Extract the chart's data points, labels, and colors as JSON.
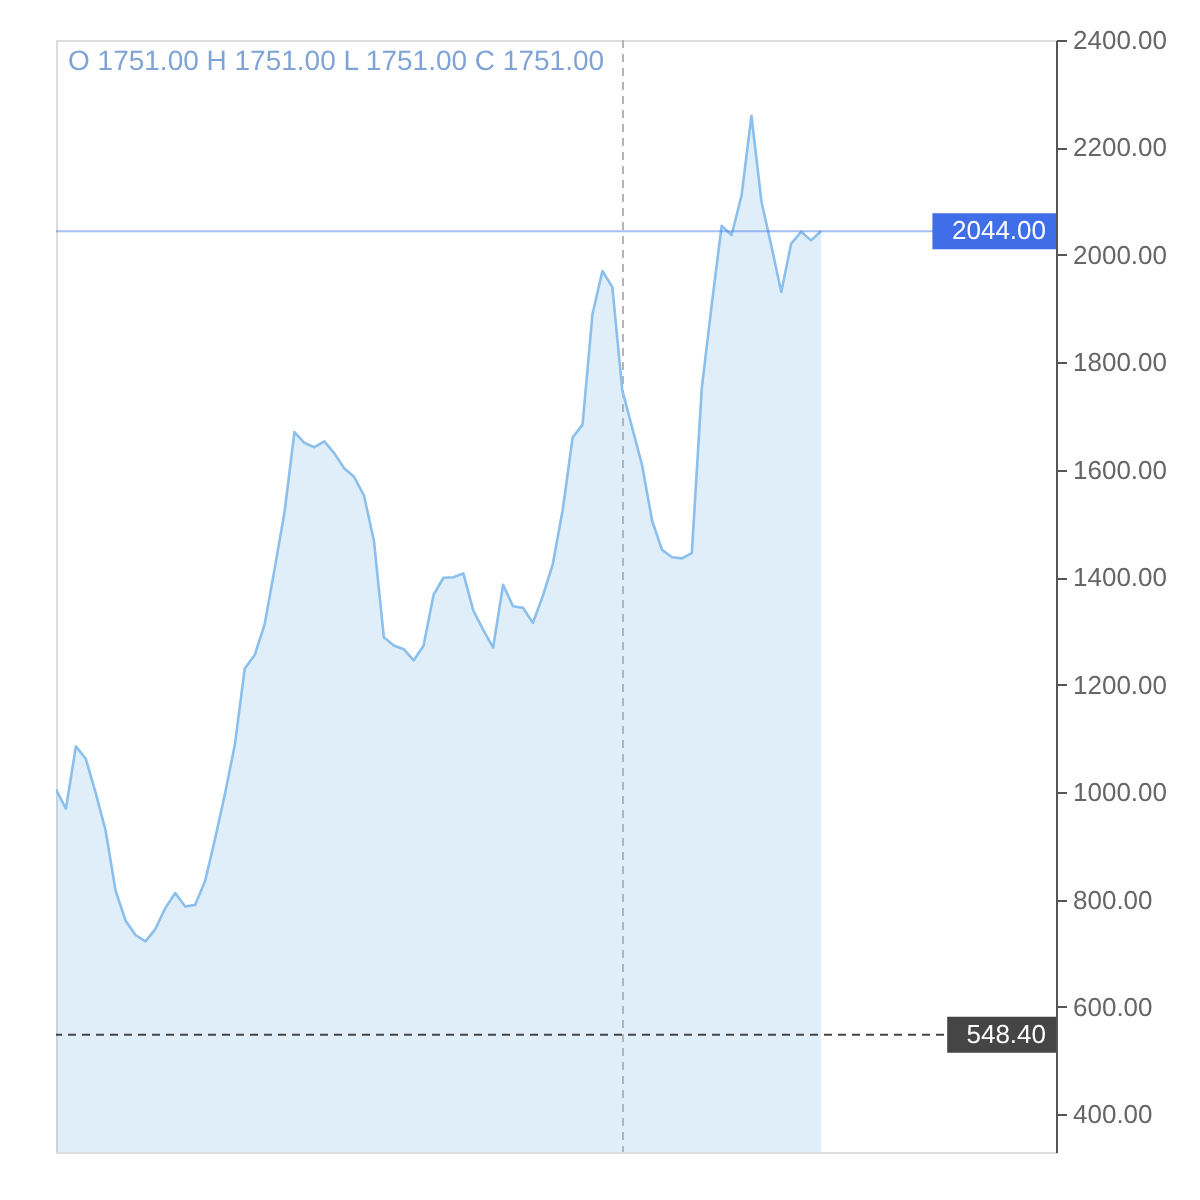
{
  "chart_data": {
    "type": "area",
    "annotations": [
      "O 1751.00 H 1751.00 L 1751.00 C 1751.00"
    ],
    "categories": [
      null,
      null,
      null,
      null,
      null,
      null,
      null,
      null,
      null,
      null,
      null,
      null,
      null,
      null,
      null,
      null,
      null,
      null,
      null,
      null,
      null,
      null,
      null,
      null,
      null,
      null,
      null,
      null,
      null,
      null,
      null,
      null,
      null,
      null,
      null,
      null,
      null,
      null,
      null,
      null,
      null,
      null,
      null,
      null,
      null,
      null,
      null,
      null,
      null,
      null,
      null,
      null,
      null,
      null,
      null,
      null,
      null,
      null,
      null,
      null,
      null,
      null,
      null,
      null,
      null,
      null,
      null,
      null,
      null,
      null,
      null,
      null,
      null,
      null,
      null,
      null,
      null,
      null
    ],
    "series": [
      {
        "color": "#8bbfec",
        "values": [
          1005,
          969,
          1085,
          1062,
          998,
          928,
          816,
          761,
          734,
          722,
          745,
          784,
          812,
          787,
          790,
          834,
          912,
          996,
          1088,
          1230,
          1255,
          1312,
          1415,
          1521,
          1670,
          1650,
          1642,
          1653,
          1631,
          1603,
          1587,
          1552,
          1468,
          1288,
          1273,
          1266,
          1245,
          1273,
          1367,
          1399,
          1400,
          1407,
          1338,
          1302,
          1269,
          1386,
          1346,
          1343,
          1315,
          1365,
          1424,
          1525,
          1660,
          1684,
          1890,
          1970,
          1940,
          1748,
          1678,
          1608,
          1505,
          1451,
          1437,
          1435,
          1445,
          1752,
          1907,
          2054,
          2037,
          2110,
          2259,
          2100,
          2017,
          1931,
          2021,
          2043,
          2027,
          2044
        ]
      }
    ],
    "ylim": [
      330,
      2400
    ],
    "yticks": [
      {
        "value": 400,
        "label": "400.00"
      },
      {
        "value": 600,
        "label": "600.00"
      },
      {
        "value": 800,
        "label": "800.00"
      },
      {
        "value": 1000,
        "label": "1000.00"
      },
      {
        "value": 1200,
        "label": "1200.00"
      },
      {
        "value": 1400,
        "label": "1400.00"
      },
      {
        "value": 1600,
        "label": "1600.00"
      },
      {
        "value": 1800,
        "label": "1800.00"
      },
      {
        "value": 2000,
        "label": "2000.00"
      },
      {
        "value": 2200,
        "label": "2200.00"
      },
      {
        "value": 2400,
        "label": "2400.00"
      }
    ],
    "tick_labels": "y",
    "grid": false,
    "ref_lines": [
      {
        "axis": "y",
        "value": 2044,
        "label": "2044.00",
        "color": "#3f6ee8",
        "line_style": "solid"
      },
      {
        "axis": "y",
        "value": 548.4,
        "label": "548.40",
        "color": "#454545",
        "line_style": "dashed"
      }
    ]
  }
}
